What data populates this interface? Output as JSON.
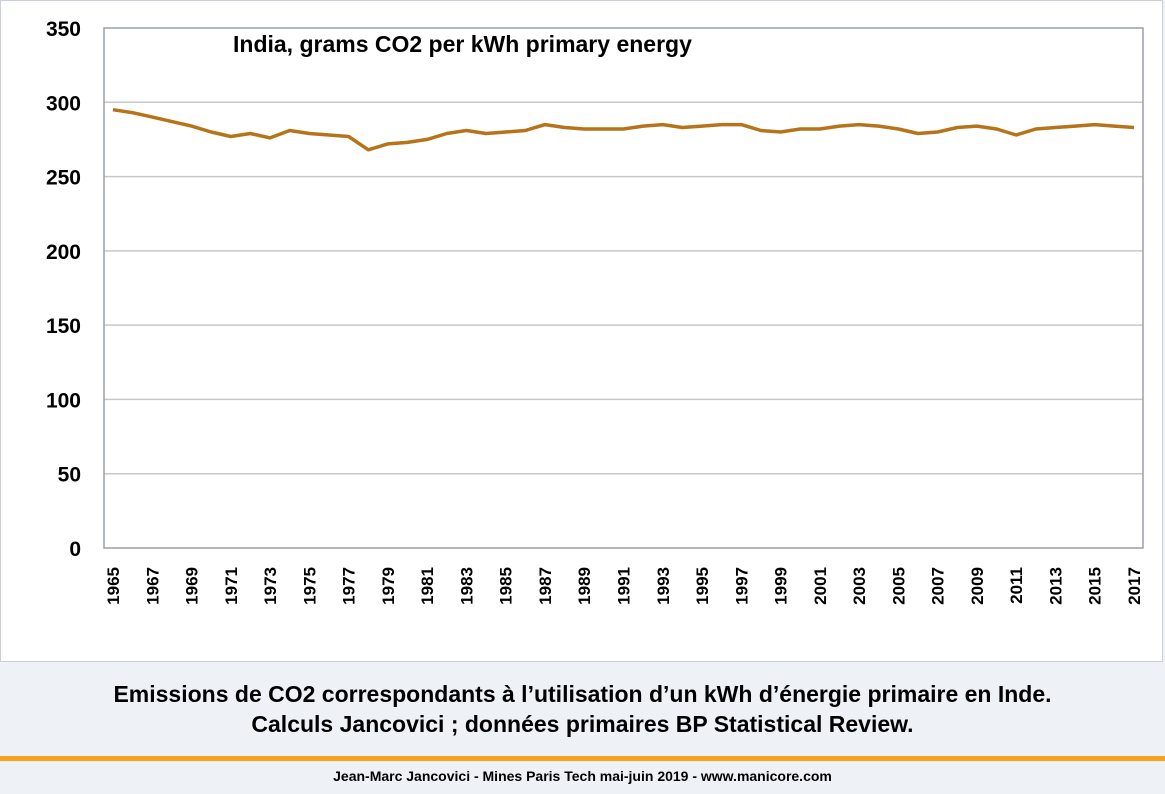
{
  "chart_data": {
    "type": "line",
    "title": "India, grams CO2 per kWh primary energy",
    "xlabel": "",
    "ylabel": "",
    "ylim": [
      0,
      350
    ],
    "yticks": [
      0,
      50,
      100,
      150,
      200,
      250,
      300,
      350
    ],
    "xtick_labels": [
      "1965",
      "1967",
      "1969",
      "1971",
      "1973",
      "1975",
      "1977",
      "1979",
      "1981",
      "1983",
      "1985",
      "1987",
      "1989",
      "1991",
      "1993",
      "1995",
      "1997",
      "1999",
      "2001",
      "2003",
      "2005",
      "2007",
      "2009",
      "2011",
      "2013",
      "2015",
      "2017"
    ],
    "grid": true,
    "legend": "none",
    "series": [
      {
        "name": "",
        "color": "#b5741a",
        "x": [
          1965,
          1966,
          1967,
          1968,
          1969,
          1970,
          1971,
          1972,
          1973,
          1974,
          1975,
          1976,
          1977,
          1978,
          1979,
          1980,
          1981,
          1982,
          1983,
          1984,
          1985,
          1986,
          1987,
          1988,
          1989,
          1990,
          1991,
          1992,
          1993,
          1994,
          1995,
          1996,
          1997,
          1998,
          1999,
          2000,
          2001,
          2002,
          2003,
          2004,
          2005,
          2006,
          2007,
          2008,
          2009,
          2010,
          2011,
          2012,
          2013,
          2014,
          2015,
          2016,
          2017
        ],
        "values": [
          295,
          293,
          290,
          287,
          284,
          280,
          277,
          279,
          276,
          281,
          279,
          278,
          277,
          268,
          272,
          273,
          275,
          279,
          281,
          279,
          280,
          281,
          285,
          283,
          282,
          282,
          282,
          284,
          285,
          283,
          284,
          285,
          285,
          281,
          280,
          282,
          282,
          284,
          285,
          284,
          282,
          279,
          280,
          283,
          284,
          282,
          278,
          282,
          283,
          284,
          285,
          284,
          283
        ]
      }
    ]
  },
  "caption": {
    "line1": "Emissions de CO2 correspondants à l’utilisation d’un kWh d’énergie primaire en Inde.",
    "line2": "Calculs Jancovici ; données primaires BP Statistical Review."
  },
  "footer": "Jean-Marc Jancovici - Mines Paris Tech mai-juin 2019 - www.manicore.com",
  "colors": {
    "line": "#b5741a",
    "rule": "#f7a21a",
    "grid": "#c8c8c8",
    "frame": "#9aa0a6"
  }
}
